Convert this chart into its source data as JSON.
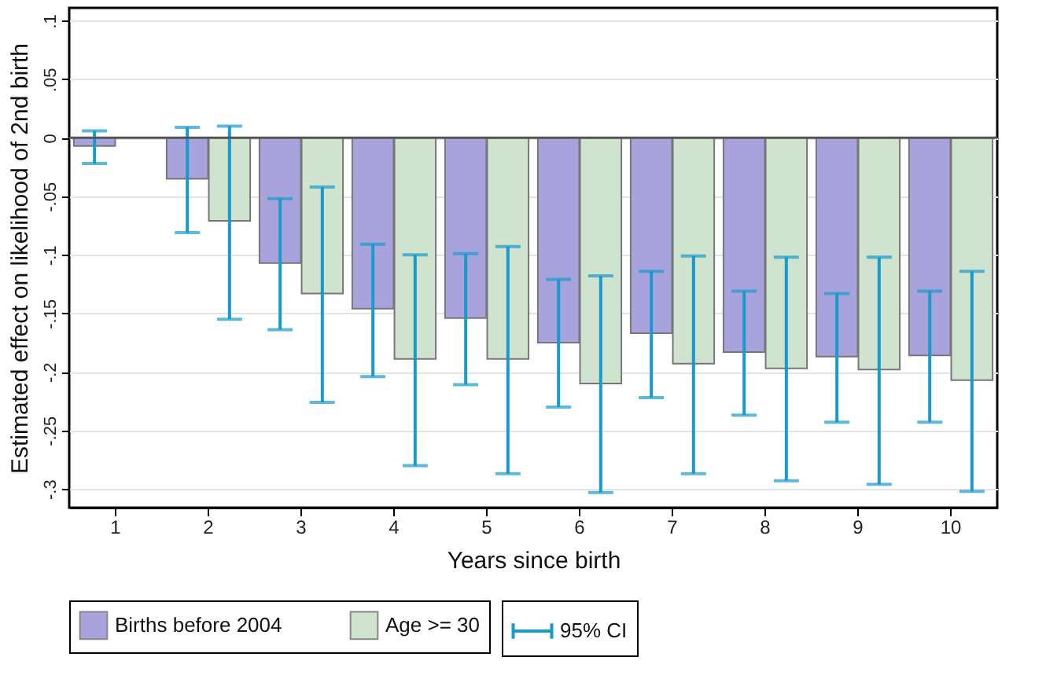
{
  "chart_data": {
    "type": "bar",
    "xlabel": "Years since birth",
    "ylabel": "Estimated effect on likelihood of 2nd birth",
    "categories": [
      "1",
      "2",
      "3",
      "4",
      "5",
      "6",
      "7",
      "8",
      "9",
      "10"
    ],
    "series": [
      {
        "name": "Births before 2004",
        "color": "#a8a3dc",
        "values": [
          -0.007,
          -0.035,
          -0.107,
          -0.146,
          -0.154,
          -0.175,
          -0.167,
          -0.183,
          -0.187,
          -0.186
        ],
        "errors": [
          [
            -0.022,
            0.006
          ],
          [
            -0.081,
            0.009
          ],
          [
            -0.164,
            -0.052
          ],
          [
            -0.204,
            -0.091
          ],
          [
            -0.211,
            -0.099
          ],
          [
            -0.23,
            -0.121
          ],
          [
            -0.222,
            -0.114
          ],
          [
            -0.237,
            -0.131
          ],
          [
            -0.243,
            -0.133
          ],
          [
            -0.243,
            -0.131
          ]
        ]
      },
      {
        "name": "Age >= 30",
        "color": "#cfe3cf",
        "values": [
          null,
          -0.071,
          -0.133,
          -0.189,
          -0.189,
          -0.21,
          -0.193,
          -0.197,
          -0.198,
          -0.207
        ],
        "errors": [
          null,
          [
            -0.155,
            0.01
          ],
          [
            -0.226,
            -0.042
          ],
          [
            -0.28,
            -0.1
          ],
          [
            -0.287,
            -0.093
          ],
          [
            -0.303,
            -0.118
          ],
          [
            -0.287,
            -0.101
          ],
          [
            -0.293,
            -0.102
          ],
          [
            -0.296,
            -0.102
          ],
          [
            -0.302,
            -0.114
          ]
        ]
      }
    ],
    "annotations": [
      "95% CI"
    ],
    "ylim": [
      -0.316,
      0.111
    ],
    "yticks": [
      {
        "value": 0.1,
        "label": ".1"
      },
      {
        "value": 0.05,
        "label": ".05"
      },
      0,
      {
        "value": -0.05,
        "label": "-.05"
      },
      {
        "value": -0.1,
        "label": "-.1"
      },
      {
        "value": -0.15,
        "label": "-.15"
      },
      {
        "value": -0.2,
        "label": "-.2"
      },
      {
        "value": -0.25,
        "label": "-.25"
      },
      {
        "value": -0.3,
        "label": "-.3"
      }
    ],
    "ref_lines": [
      {
        "axis": "y",
        "value": 0,
        "color": "#555555"
      }
    ],
    "grid": "y",
    "legend": "bottom"
  }
}
